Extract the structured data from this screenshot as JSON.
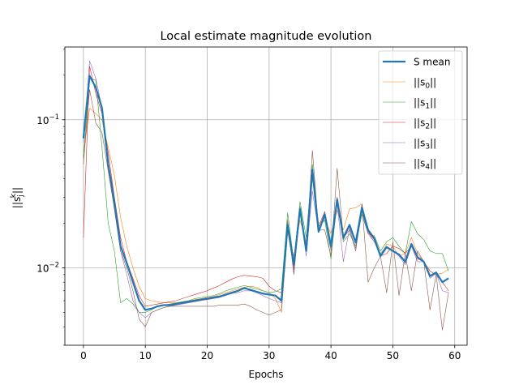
{
  "chart_data": {
    "type": "line",
    "title": "Local estimate magnitude evolution",
    "xlabel": "Epochs",
    "ylabel": "||s",
    "ylabel_sub": "j",
    "ylabel_sup": "k",
    "ylabel_end": "||",
    "yscale": "log",
    "xlim": [
      -3,
      62
    ],
    "ylim": [
      0.003,
      0.31
    ],
    "grid": true,
    "legend_position": "top-right",
    "x_ticks": [
      0,
      10,
      20,
      30,
      40,
      50,
      60
    ],
    "x_tick_labels": [
      "0",
      "10",
      "20",
      "30",
      "40",
      "50",
      "60"
    ],
    "y_major_ticks": [
      0.01,
      0.1
    ],
    "y_major_tick_labels": [
      "10",
      "10"
    ],
    "y_major_tick_exponents": [
      "−2",
      "−1"
    ],
    "x": [
      0,
      1,
      2,
      3,
      4,
      5,
      6,
      7,
      8,
      9,
      10,
      11,
      12,
      13,
      14,
      15,
      16,
      17,
      18,
      19,
      20,
      21,
      22,
      23,
      24,
      25,
      26,
      27,
      28,
      29,
      30,
      31,
      32,
      33,
      34,
      35,
      36,
      37,
      38,
      39,
      40,
      41,
      42,
      43,
      44,
      45,
      46,
      47,
      48,
      49,
      50,
      51,
      52,
      53,
      54,
      55,
      56,
      57,
      58,
      59
    ],
    "series": [
      {
        "name": "S mean",
        "legend_label": "S mean",
        "color": "#1f77b4",
        "width": 2.2,
        "values": [
          0.075,
          0.198,
          0.165,
          0.12,
          0.05,
          0.028,
          0.014,
          0.0108,
          0.008,
          0.006,
          0.0052,
          0.0053,
          0.0055,
          0.0056,
          0.0056,
          0.0057,
          0.0058,
          0.0059,
          0.006,
          0.0061,
          0.0062,
          0.0063,
          0.0064,
          0.0066,
          0.0068,
          0.007,
          0.0073,
          0.0071,
          0.0069,
          0.0067,
          0.0066,
          0.0065,
          0.006,
          0.0195,
          0.0105,
          0.025,
          0.013,
          0.046,
          0.0175,
          0.023,
          0.014,
          0.029,
          0.016,
          0.0195,
          0.0148,
          0.0255,
          0.018,
          0.0158,
          0.012,
          0.0138,
          0.013,
          0.0123,
          0.011,
          0.0145,
          0.0118,
          0.011,
          0.0088,
          0.0093,
          0.008,
          0.0085
        ]
      },
      {
        "name": "s0",
        "legend_label": "||s",
        "legend_sub": "0",
        "legend_end": "||",
        "color": "#ff7f0e",
        "width": 0.6,
        "values": [
          0.06,
          0.12,
          0.11,
          0.1,
          0.065,
          0.042,
          0.022,
          0.014,
          0.01,
          0.0075,
          0.0062,
          0.006,
          0.0059,
          0.0058,
          0.0058,
          0.0058,
          0.0059,
          0.006,
          0.0061,
          0.0062,
          0.0063,
          0.0064,
          0.0066,
          0.0068,
          0.007,
          0.0072,
          0.0074,
          0.0075,
          0.0074,
          0.007,
          0.0068,
          0.0062,
          0.005,
          0.0175,
          0.012,
          0.021,
          0.015,
          0.04,
          0.02,
          0.021,
          0.017,
          0.0245,
          0.018,
          0.025,
          0.0255,
          0.027,
          0.0175,
          0.015,
          0.012,
          0.0145,
          0.014,
          0.012,
          0.0125,
          0.016,
          0.0125,
          0.011,
          0.0095,
          0.009,
          0.0092,
          0.0098
        ]
      },
      {
        "name": "s1",
        "legend_label": "||s",
        "legend_sub": "1",
        "legend_end": "||",
        "color": "#2ca02c",
        "width": 0.6,
        "values": [
          0.055,
          0.19,
          0.185,
          0.065,
          0.02,
          0.013,
          0.0058,
          0.0062,
          0.0057,
          0.005,
          0.005,
          0.0052,
          0.0055,
          0.0056,
          0.0057,
          0.0058,
          0.0059,
          0.006,
          0.0062,
          0.0063,
          0.0064,
          0.0065,
          0.0067,
          0.007,
          0.0072,
          0.0074,
          0.0076,
          0.0074,
          0.0072,
          0.007,
          0.0068,
          0.0069,
          0.0072,
          0.0235,
          0.011,
          0.028,
          0.016,
          0.05,
          0.019,
          0.021,
          0.0115,
          0.028,
          0.015,
          0.017,
          0.014,
          0.023,
          0.017,
          0.0165,
          0.013,
          0.015,
          0.016,
          0.014,
          0.0125,
          0.0205,
          0.017,
          0.0155,
          0.013,
          0.0125,
          0.0125,
          0.0095
        ]
      },
      {
        "name": "s2",
        "legend_label": "||s",
        "legend_sub": "2",
        "legend_end": "||",
        "color": "#d62728",
        "width": 0.6,
        "values": [
          0.016,
          0.23,
          0.15,
          0.11,
          0.06,
          0.03,
          0.016,
          0.011,
          0.0085,
          0.0065,
          0.0055,
          0.0056,
          0.0057,
          0.0058,
          0.0059,
          0.006,
          0.0062,
          0.0064,
          0.0066,
          0.0068,
          0.007,
          0.0073,
          0.0076,
          0.008,
          0.0084,
          0.0087,
          0.0089,
          0.0088,
          0.0087,
          0.0085,
          0.0075,
          0.007,
          0.0068,
          0.018,
          0.0098,
          0.024,
          0.014,
          0.046,
          0.019,
          0.024,
          0.0145,
          0.03,
          0.0155,
          0.019,
          0.015,
          0.026,
          0.0175,
          0.0155,
          0.012,
          0.0125,
          0.014,
          0.0135,
          0.0125,
          0.014,
          0.0115,
          0.011,
          0.0095,
          0.009,
          0.008,
          0.007
        ]
      },
      {
        "name": "s3",
        "legend_label": "||s",
        "legend_sub": "3",
        "legend_end": "||",
        "color": "#9467bd",
        "width": 0.6,
        "values": [
          0.07,
          0.25,
          0.19,
          0.12,
          0.05,
          0.025,
          0.013,
          0.009,
          0.006,
          0.005,
          0.0046,
          0.005,
          0.0052,
          0.0054,
          0.0055,
          0.0056,
          0.0057,
          0.0058,
          0.0059,
          0.006,
          0.0061,
          0.0062,
          0.0063,
          0.0065,
          0.0067,
          0.0068,
          0.007,
          0.007,
          0.0068,
          0.0065,
          0.0062,
          0.006,
          0.0058,
          0.02,
          0.0095,
          0.026,
          0.012,
          0.033,
          0.0175,
          0.022,
          0.013,
          0.027,
          0.011,
          0.0185,
          0.0135,
          0.024,
          0.017,
          0.015,
          0.0125,
          0.014,
          0.013,
          0.012,
          0.0105,
          0.014,
          0.011,
          0.011,
          0.0085,
          0.0092,
          0.007,
          0.0068
        ]
      },
      {
        "name": "s4",
        "legend_label": "||s",
        "legend_sub": "4",
        "legend_end": "||",
        "color": "#8c564b",
        "width": 0.6,
        "values": [
          0.05,
          0.16,
          0.095,
          0.082,
          0.045,
          0.025,
          0.013,
          0.01,
          0.007,
          0.0045,
          0.004,
          0.005,
          0.0052,
          0.0054,
          0.0055,
          0.0055,
          0.0055,
          0.0055,
          0.0055,
          0.0055,
          0.0055,
          0.0055,
          0.0056,
          0.0056,
          0.0056,
          0.0056,
          0.0057,
          0.0055,
          0.0052,
          0.005,
          0.0048,
          0.005,
          0.0052,
          0.021,
          0.009,
          0.024,
          0.013,
          0.062,
          0.018,
          0.018,
          0.012,
          0.047,
          0.016,
          0.018,
          0.013,
          0.027,
          0.008,
          0.01,
          0.012,
          0.0068,
          0.015,
          0.0065,
          0.0125,
          0.007,
          0.013,
          0.011,
          0.0052,
          0.009,
          0.0038,
          0.0068
        ]
      }
    ]
  }
}
